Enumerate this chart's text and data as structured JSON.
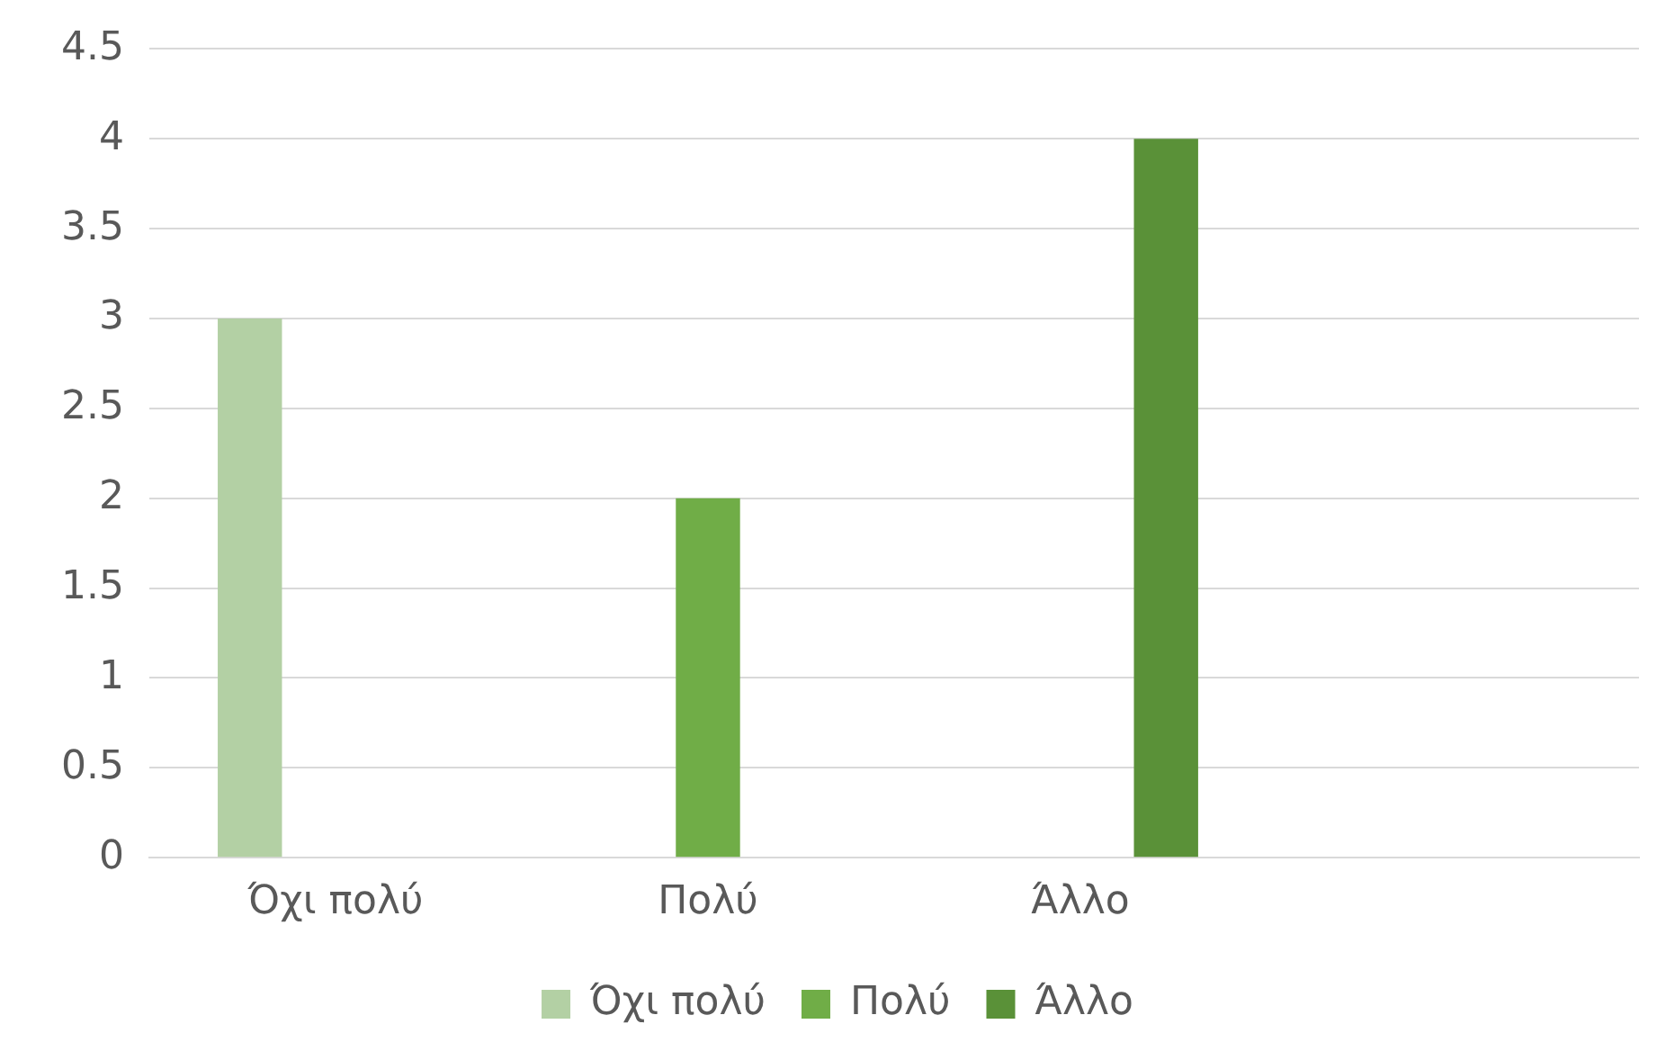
{
  "chart_data": {
    "type": "bar",
    "categories": [
      "Όχι πολύ",
      "Πολύ",
      "Άλλο",
      null
    ],
    "series": [
      {
        "name": "Όχι πολύ",
        "color": "#b3d0a4",
        "values": [
          3,
          null,
          null,
          null
        ]
      },
      {
        "name": "Πολύ",
        "color": "#70ad47",
        "values": [
          null,
          2,
          null,
          null
        ]
      },
      {
        "name": "Άλλο",
        "color": "#5a9138",
        "values": [
          null,
          null,
          4,
          null
        ]
      }
    ],
    "ylim": [
      0,
      4.5
    ],
    "yticks": [
      0,
      0.5,
      1,
      1.5,
      2,
      2.5,
      3,
      3.5,
      4,
      4.5
    ],
    "grid": "y",
    "legend": "bottom"
  }
}
